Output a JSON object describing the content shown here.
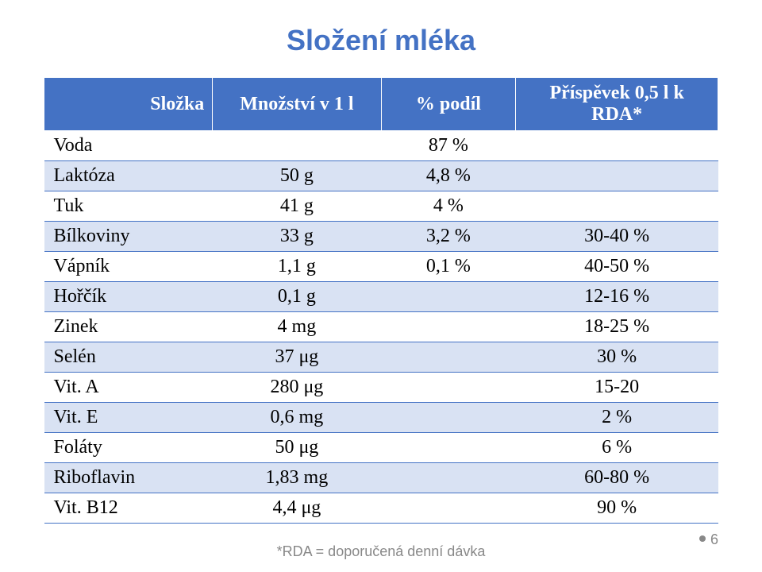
{
  "title": "Složení mléka",
  "columns": [
    "Složka",
    "Množství v 1 l",
    "% podíl",
    "Příspěvek 0,5 l k RDA*"
  ],
  "rows": [
    {
      "name": "Voda",
      "amount": "",
      "percent": "87 %",
      "contrib": ""
    },
    {
      "name": "Laktóza",
      "amount": "50 g",
      "percent": "4,8 %",
      "contrib": ""
    },
    {
      "name": "Tuk",
      "amount": "41 g",
      "percent": "4 %",
      "contrib": ""
    },
    {
      "name": "Bílkoviny",
      "amount": "33 g",
      "percent": "3,2 %",
      "contrib": "30-40 %"
    },
    {
      "name": "Vápník",
      "amount": "1,1 g",
      "percent": "0,1 %",
      "contrib": "40-50 %"
    },
    {
      "name": "Hořčík",
      "amount": "0,1 g",
      "percent": "",
      "contrib": "12-16 %"
    },
    {
      "name": "Zinek",
      "amount": "4 mg",
      "percent": "",
      "contrib": "18-25 %"
    },
    {
      "name": "Selén",
      "amount": "37 μg",
      "percent": "",
      "contrib": "30 %"
    },
    {
      "name": "Vit. A",
      "amount": "280 μg",
      "percent": "",
      "contrib": "15-20"
    },
    {
      "name": "Vit. E",
      "amount": "0,6 mg",
      "percent": "",
      "contrib": "2 %"
    },
    {
      "name": "Foláty",
      "amount": "50 μg",
      "percent": "",
      "contrib": "6 %"
    },
    {
      "name": "Riboflavin",
      "amount": "1,83 mg",
      "percent": "",
      "contrib": "60-80 %"
    },
    {
      "name": "Vit. B12",
      "amount": "4,4 μg",
      "percent": "",
      "contrib": "90 %"
    }
  ],
  "footnote": "*RDA = doporučená denní dávka",
  "page_number": "6",
  "colors": {
    "header_bg": "#4472c4",
    "header_text": "#ffffff",
    "row_alt_bg": "#d9e2f3",
    "border": "#4472c4",
    "title": "#4472c4",
    "footnote": "#888888"
  }
}
